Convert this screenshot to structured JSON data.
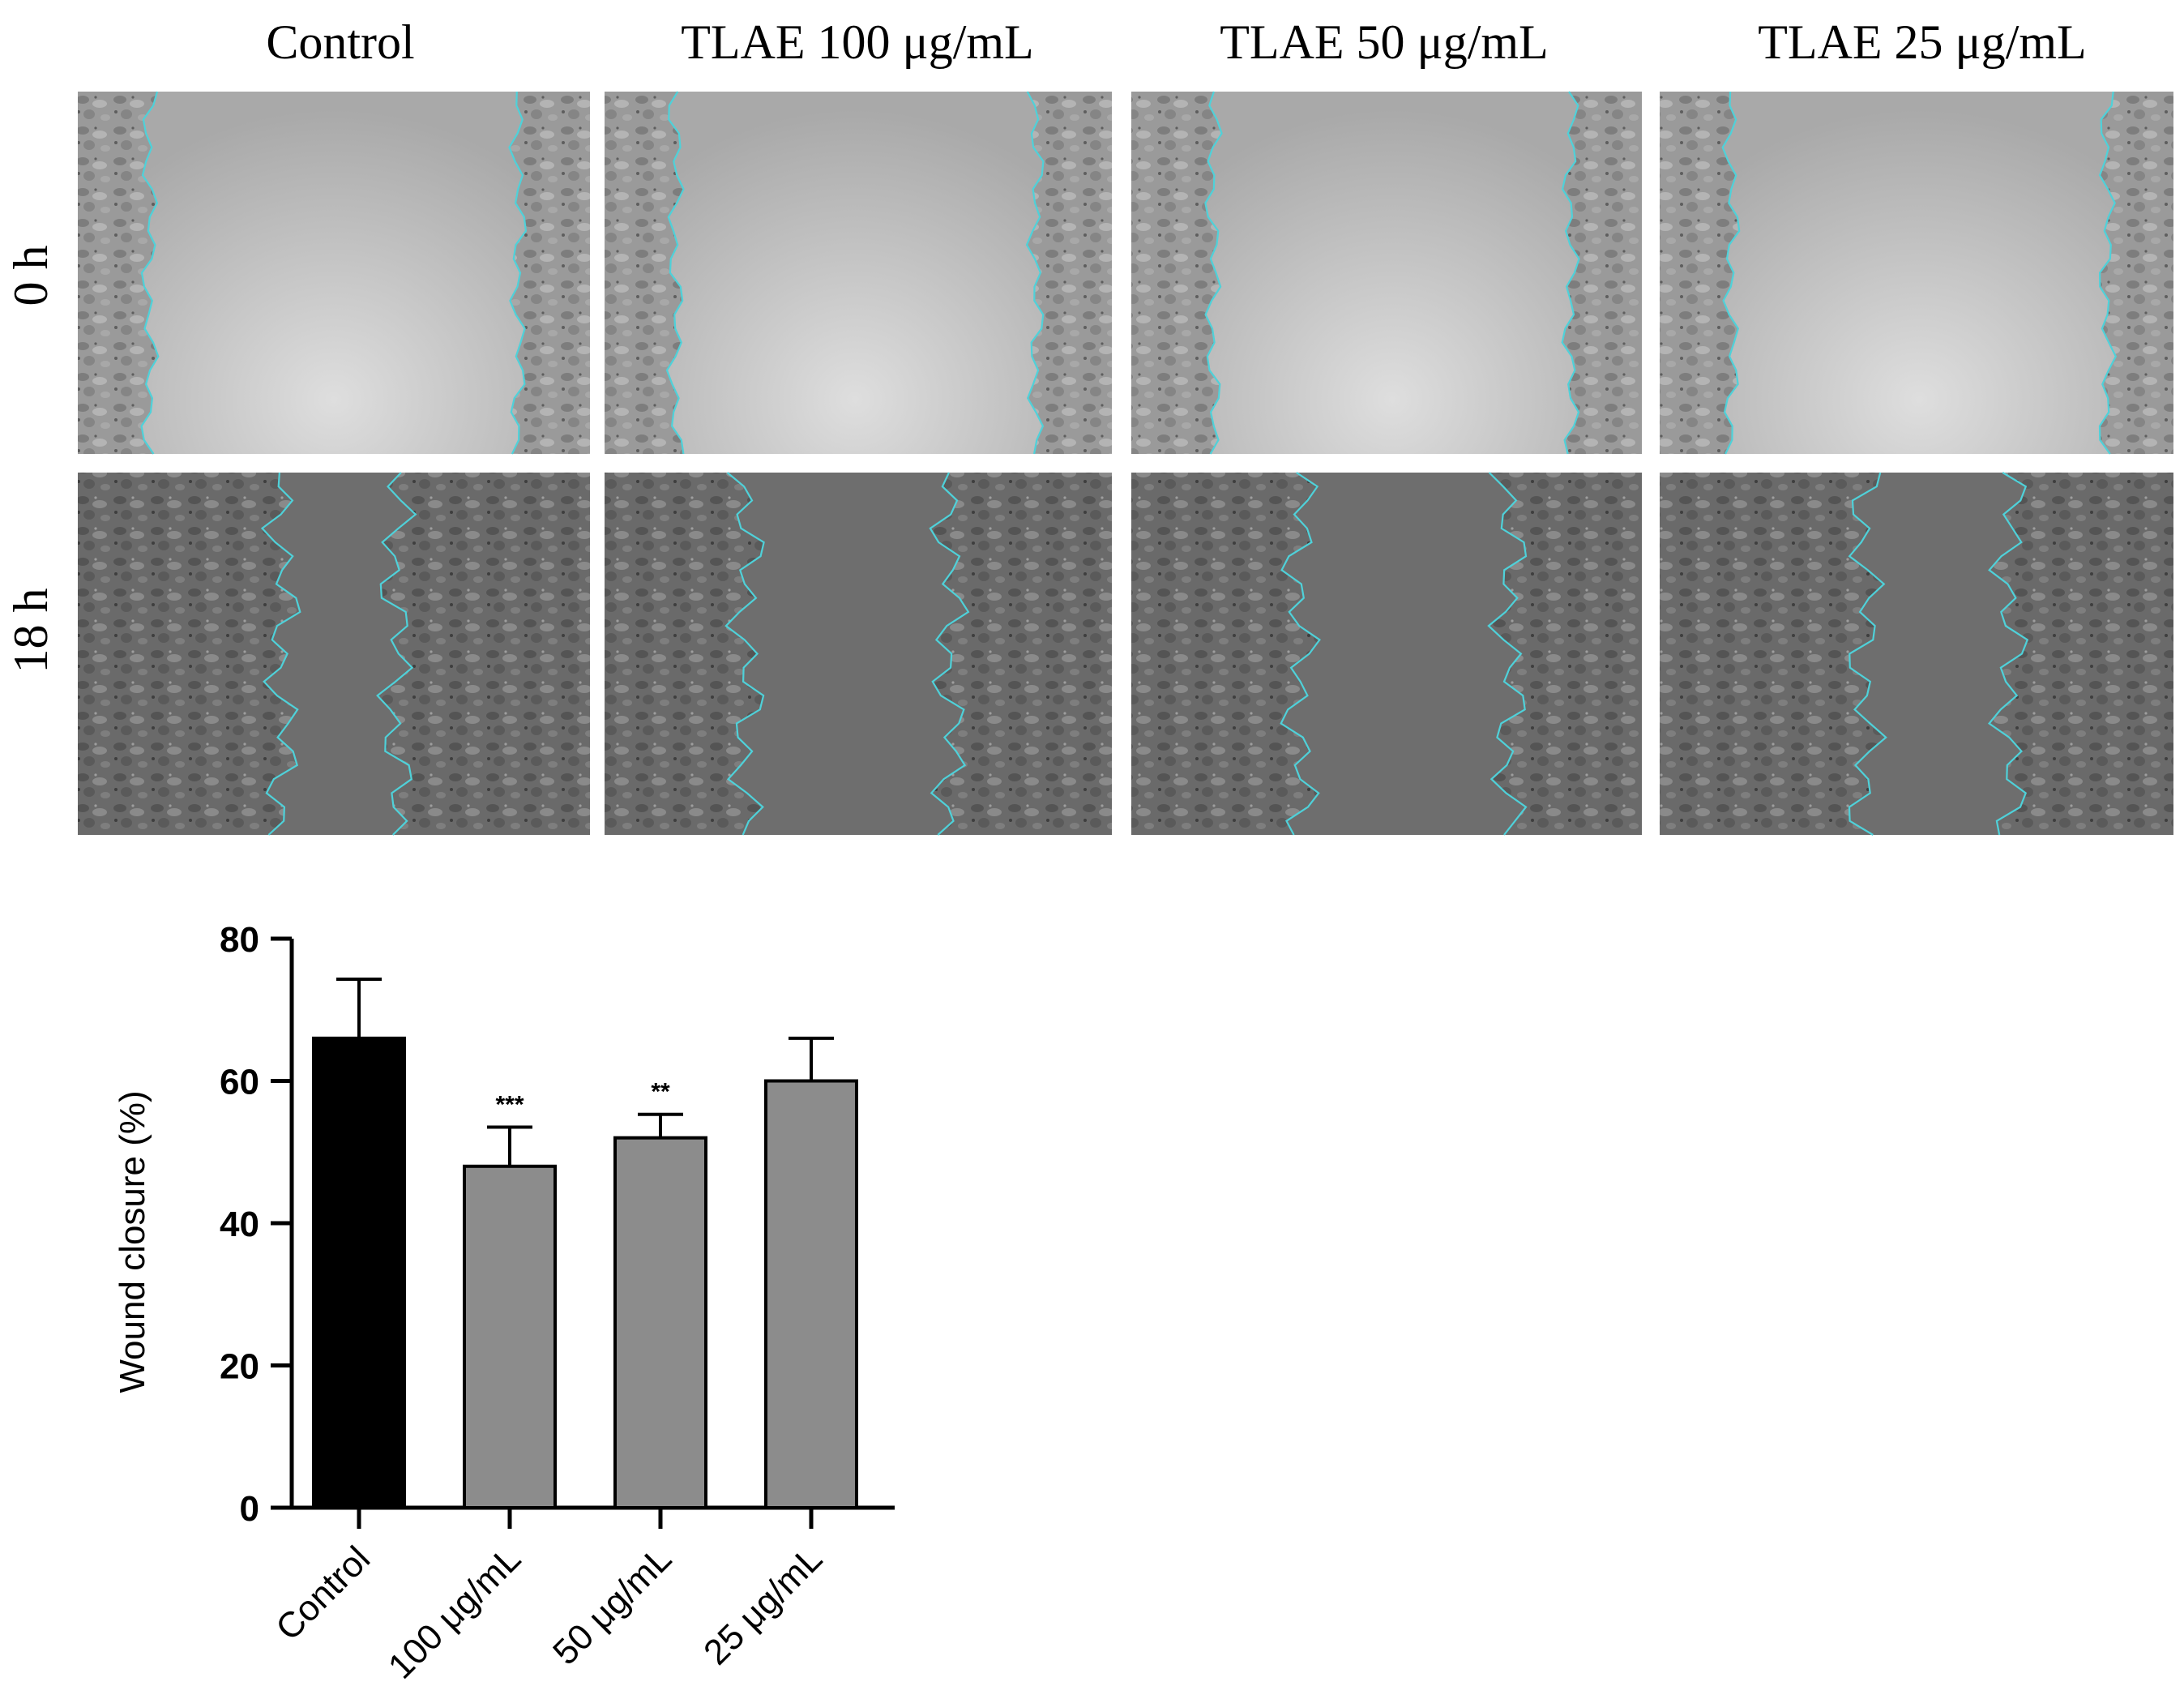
{
  "columns": [
    "Control",
    "TLAE 100 μg/mL",
    "TLAE 50 μg/mL",
    "TLAE 25 μg/mL"
  ],
  "rows": [
    "0 h",
    "18 h"
  ],
  "colors": {
    "control_bar": "#000000",
    "treatment_bar": "#8c8c8c",
    "outline": "#4fd1d9",
    "micrograph_0h": "#b8b8b8",
    "micrograph_18h": "#6e6e6e"
  },
  "chart_data": {
    "type": "bar",
    "title": "",
    "xlabel": "",
    "ylabel": "Wound closure (%)",
    "ylim": [
      0,
      80
    ],
    "yticks": [
      0,
      20,
      40,
      60,
      80
    ],
    "categories": [
      "Control",
      "100 μg/mL",
      "50 μg/mL",
      "25 μg/mL"
    ],
    "values": [
      66,
      48,
      52,
      60
    ],
    "errors": [
      8.3,
      5.5,
      3.3,
      6
    ],
    "significance": [
      "",
      "***",
      "**",
      ""
    ]
  }
}
